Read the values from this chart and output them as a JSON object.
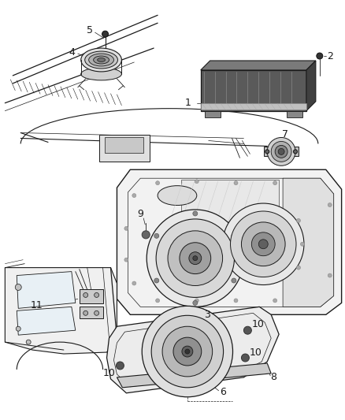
{
  "background_color": "#ffffff",
  "figsize": [
    4.38,
    5.33
  ],
  "dpi": 100,
  "label_fontsize": 8,
  "line_color": "#1a1a1a",
  "text_color": "#1a1a1a",
  "gray_light": "#d8d8d8",
  "gray_mid": "#aaaaaa",
  "gray_dark": "#555555",
  "gray_fill": "#e8e8e8"
}
